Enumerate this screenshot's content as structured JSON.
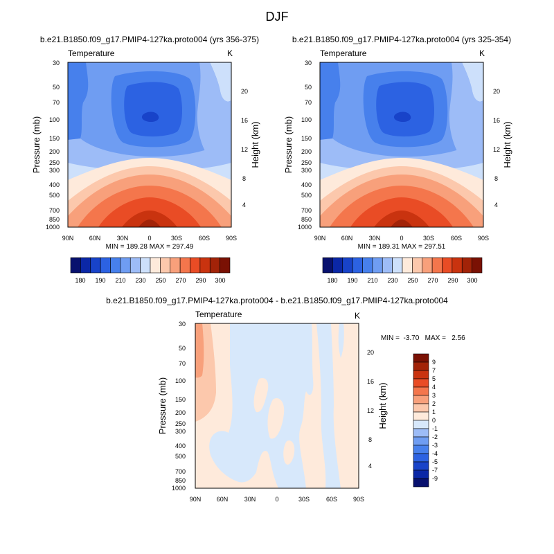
{
  "figure_title": "DJF",
  "colors": {
    "temperature_scale": [
      "#08116e",
      "#0b27a6",
      "#1843c9",
      "#2c62e2",
      "#4780ec",
      "#6f9df2",
      "#9dbcf7",
      "#cde0fb",
      "#feeadb",
      "#fcc8ac",
      "#f8a07b",
      "#f4764c",
      "#e94c25",
      "#c9330f",
      "#a22308",
      "#7a1104"
    ],
    "difference_scale": [
      "#08116e",
      "#0b27a6",
      "#1843c9",
      "#2c62e2",
      "#4780ec",
      "#6f9df2",
      "#9dbcf7",
      "#d7e8fb",
      "#feeadb",
      "#fcc8ac",
      "#f8a07b",
      "#f4764c",
      "#e94c25",
      "#c9330f",
      "#a22308",
      "#7a1104"
    ]
  },
  "chart_data": [
    {
      "type": "heatmap",
      "id": "panel-1",
      "title": "b.e21.B1850.f09_g17.PMIP4-127ka.proto004 (yrs 356-375)",
      "variable_label": "Temperature",
      "units_label": "K",
      "ylabel": "Pressure (mb)",
      "ylabel_right": "Height (km)",
      "xticks": [
        "90N",
        "60N",
        "30N",
        "0",
        "30S",
        "60S",
        "90S"
      ],
      "yticks": [
        "30",
        "50",
        "70",
        "100",
        "150",
        "200",
        "250",
        "300",
        "400",
        "500",
        "700",
        "850",
        "1000"
      ],
      "yticks_right": [
        "20",
        "16",
        "12",
        "8",
        "4"
      ],
      "x_range": [
        90,
        -90
      ],
      "y_range": [
        1000,
        30
      ],
      "stats_text": "MIN = 189.28   MAX = 297.49",
      "min": 189.28,
      "max": 297.49,
      "colorbar_labels": [
        "180",
        "190",
        "210",
        "230",
        "250",
        "270",
        "290",
        "300"
      ]
    },
    {
      "type": "heatmap",
      "id": "panel-2",
      "title": "b.e21.B1850.f09_g17.PMIP4-127ka.proto004 (yrs 325-354)",
      "variable_label": "Temperature",
      "units_label": "K",
      "ylabel": "Pressure (mb)",
      "ylabel_right": "Height (km)",
      "xticks": [
        "90N",
        "60N",
        "30N",
        "0",
        "30S",
        "60S",
        "90S"
      ],
      "yticks": [
        "30",
        "50",
        "70",
        "100",
        "150",
        "200",
        "250",
        "300",
        "400",
        "500",
        "700",
        "850",
        "1000"
      ],
      "yticks_right": [
        "20",
        "16",
        "12",
        "8",
        "4"
      ],
      "x_range": [
        90,
        -90
      ],
      "y_range": [
        1000,
        30
      ],
      "stats_text": "MIN = 189.31   MAX = 297.51",
      "min": 189.31,
      "max": 297.51,
      "colorbar_labels": [
        "180",
        "190",
        "210",
        "230",
        "250",
        "270",
        "290",
        "300"
      ]
    },
    {
      "type": "heatmap",
      "id": "panel-3",
      "title": "b.e21.B1850.f09_g17.PMIP4-127ka.proto004 - b.e21.B1850.f09_g17.PMIP4-127ka.proto004",
      "variable_label": "Temperature",
      "units_label": "K",
      "ylabel": "Pressure (mb)",
      "ylabel_right": "Height (km)",
      "xticks": [
        "90N",
        "60N",
        "30N",
        "0",
        "30S",
        "60S",
        "90S"
      ],
      "yticks": [
        "30",
        "50",
        "70",
        "100",
        "150",
        "200",
        "250",
        "300",
        "400",
        "500",
        "700",
        "850",
        "1000"
      ],
      "yticks_right": [
        "20",
        "16",
        "12",
        "8",
        "4"
      ],
      "x_range": [
        90,
        -90
      ],
      "y_range": [
        1000,
        30
      ],
      "stats_text": "MIN =  -3.70   MAX =   2.56",
      "min": -3.7,
      "max": 2.56,
      "colorbar_labels": [
        "9",
        "7",
        "5",
        "4",
        "3",
        "2",
        "1",
        "0",
        "-1",
        "-2",
        "-3",
        "-4",
        "-5",
        "-7",
        "-9"
      ]
    }
  ]
}
